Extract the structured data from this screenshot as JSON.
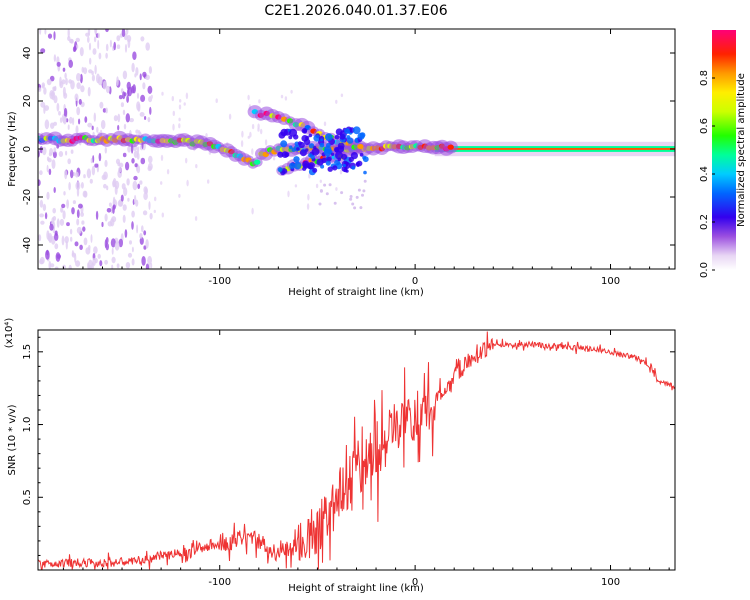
{
  "title": "C2E1.2026.040.01.37.E06",
  "chart_data": [
    {
      "type": "heatmap",
      "name": "spectrogram",
      "xlabel": "Height of straight line (km)",
      "ylabel": "Frequency (Hz)",
      "xlim": [
        -193,
        133
      ],
      "ylim": [
        -50,
        50
      ],
      "xticks": [
        -100,
        0,
        100
      ],
      "yticks": [
        -40,
        -20,
        0,
        20,
        40
      ],
      "ytick_labels": [
        "-40",
        "-20",
        "0",
        "20",
        "40"
      ],
      "colorbar": {
        "label": "Normalized spectral amplitude",
        "range": [
          0,
          1
        ],
        "ticks": [
          0.0,
          0.2,
          0.4,
          0.6,
          0.8
        ],
        "tick_labels": [
          "0.0",
          "0.2",
          "0.4",
          "0.6",
          "0.8"
        ]
      },
      "ridges": [
        {
          "name": "main-carrier",
          "points": [
            [
              -193,
              4
            ],
            [
              -170,
              4
            ],
            [
              -150,
              4
            ],
            [
              -130,
              4
            ],
            [
              -115,
              3
            ],
            [
              -105,
              2
            ],
            [
              -95,
              -1
            ],
            [
              -88,
              -4
            ],
            [
              -82,
              -6
            ],
            [
              -78,
              -2
            ],
            [
              -70,
              0
            ],
            [
              -60,
              0
            ],
            [
              -45,
              0
            ],
            [
              -35,
              0
            ],
            [
              -25,
              0
            ],
            [
              -15,
              1
            ],
            [
              0,
              1
            ],
            [
              10,
              1
            ],
            [
              30,
              0
            ],
            [
              60,
              0
            ],
            [
              100,
              0
            ],
            [
              133,
              0
            ]
          ]
        },
        {
          "name": "upper-branch",
          "points": [
            [
              -82,
              15
            ],
            [
              -75,
              14
            ],
            [
              -65,
              12
            ],
            [
              -58,
              10
            ],
            [
              -50,
              7
            ],
            [
              -42,
              4
            ],
            [
              -35,
              2
            ],
            [
              -28,
              1
            ]
          ]
        },
        {
          "name": "lower-branch",
          "points": [
            [
              -68,
              -9
            ],
            [
              -60,
              -7
            ],
            [
              -52,
              -5
            ],
            [
              -45,
              -4
            ],
            [
              -38,
              -3
            ]
          ]
        }
      ]
    },
    {
      "type": "line",
      "name": "snr",
      "xlabel": "Height of straight line (km)",
      "ylabel": "SNR (10 * v/v)",
      "y_multiplier": "(x10⁴)",
      "xlim": [
        -193,
        133
      ],
      "ylim": [
        0,
        1.65
      ],
      "xticks": [
        -100,
        0,
        100
      ],
      "yticks": [
        0.5,
        1.0,
        1.5
      ],
      "ytick_labels": [
        "0.5",
        "1.0",
        "1.5"
      ],
      "color": "#ee3333",
      "envelope": [
        [
          -193,
          0.04
        ],
        [
          -180,
          0.05
        ],
        [
          -160,
          0.05
        ],
        [
          -140,
          0.06
        ],
        [
          -130,
          0.1
        ],
        [
          -120,
          0.12
        ],
        [
          -110,
          0.14
        ],
        [
          -100,
          0.17
        ],
        [
          -92,
          0.2
        ],
        [
          -85,
          0.24
        ],
        [
          -80,
          0.2
        ],
        [
          -75,
          0.14
        ],
        [
          -70,
          0.12
        ],
        [
          -62,
          0.15
        ],
        [
          -55,
          0.22
        ],
        [
          -48,
          0.32
        ],
        [
          -42,
          0.45
        ],
        [
          -35,
          0.6
        ],
        [
          -28,
          0.75
        ],
        [
          -20,
          0.85
        ],
        [
          -15,
          0.9
        ],
        [
          -10,
          0.95
        ],
        [
          -5,
          1.0
        ],
        [
          0,
          1.05
        ],
        [
          10,
          1.15
        ],
        [
          20,
          1.32
        ],
        [
          30,
          1.48
        ],
        [
          40,
          1.55
        ],
        [
          50,
          1.55
        ],
        [
          60,
          1.55
        ],
        [
          70,
          1.54
        ],
        [
          80,
          1.53
        ],
        [
          90,
          1.52
        ],
        [
          100,
          1.5
        ],
        [
          105,
          1.48
        ],
        [
          110,
          1.47
        ],
        [
          115,
          1.45
        ],
        [
          120,
          1.4
        ],
        [
          125,
          1.3
        ],
        [
          133,
          1.26
        ]
      ]
    }
  ]
}
